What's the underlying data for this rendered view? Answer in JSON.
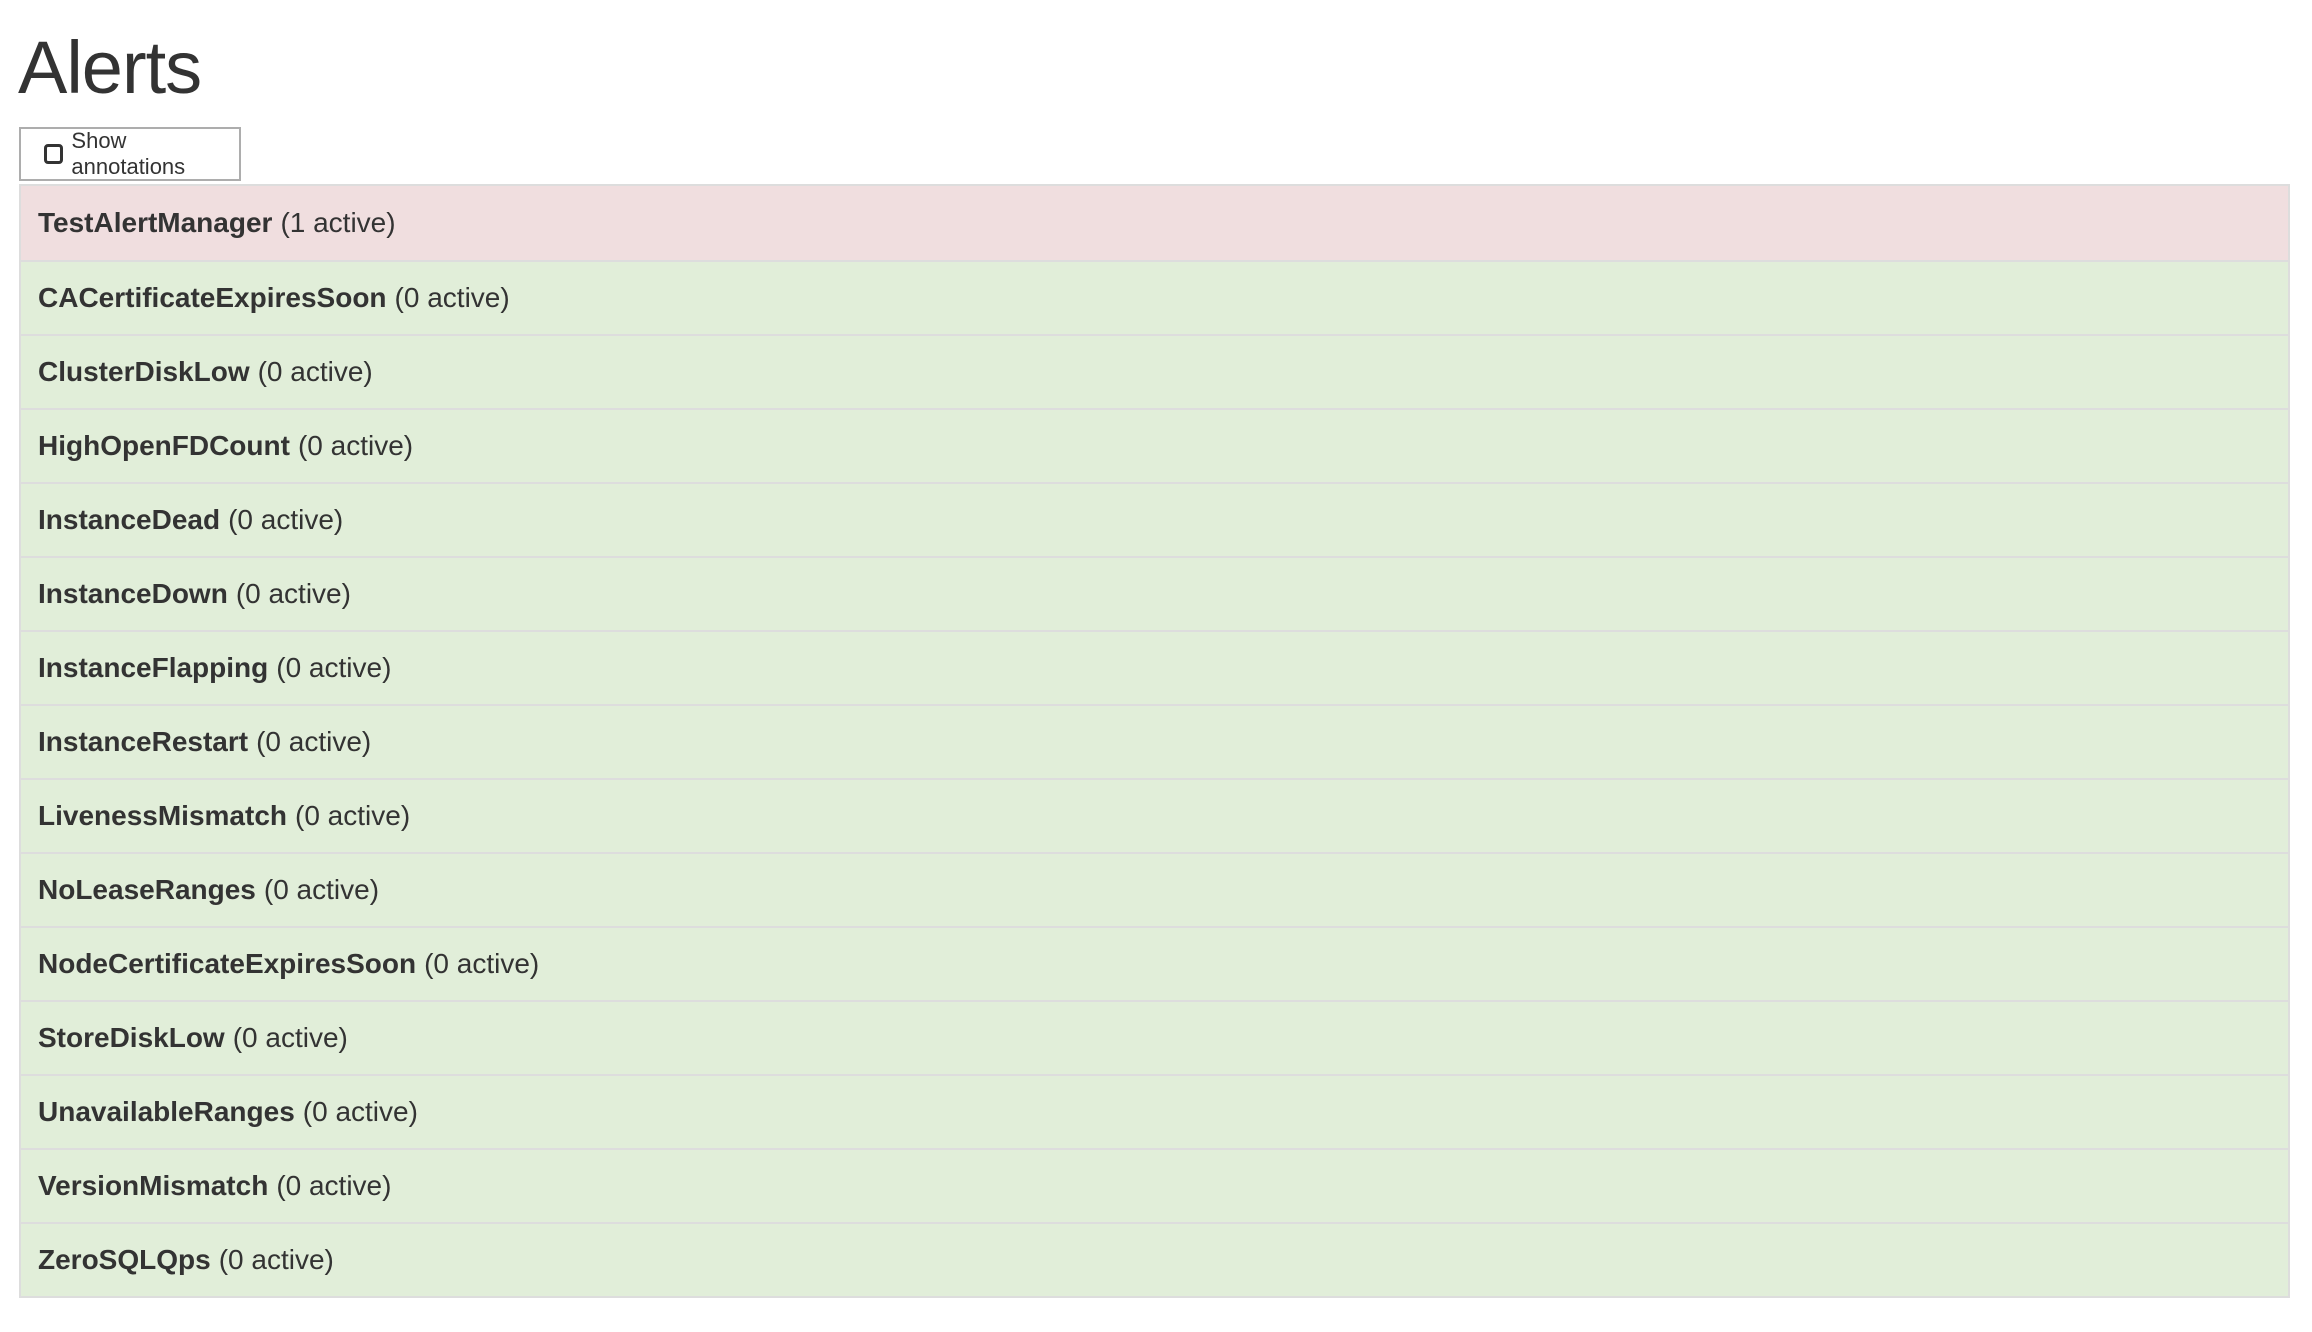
{
  "page": {
    "title": "Alerts"
  },
  "toolbar": {
    "show_annotations_label": "Show annotations",
    "show_annotations_checked": false
  },
  "colors": {
    "firing": "#f0dedf",
    "inactive": "#e1eed9",
    "border": "#dddddd",
    "text": "#333333"
  },
  "alerts": [
    {
      "name": "TestAlertManager",
      "count": "(1 active)",
      "state": "firing"
    },
    {
      "name": "CACertificateExpiresSoon",
      "count": "(0 active)",
      "state": "inactive"
    },
    {
      "name": "ClusterDiskLow",
      "count": "(0 active)",
      "state": "inactive"
    },
    {
      "name": "HighOpenFDCount",
      "count": "(0 active)",
      "state": "inactive"
    },
    {
      "name": "InstanceDead",
      "count": "(0 active)",
      "state": "inactive"
    },
    {
      "name": "InstanceDown",
      "count": "(0 active)",
      "state": "inactive"
    },
    {
      "name": "InstanceFlapping",
      "count": "(0 active)",
      "state": "inactive"
    },
    {
      "name": "InstanceRestart",
      "count": "(0 active)",
      "state": "inactive"
    },
    {
      "name": "LivenessMismatch",
      "count": "(0 active)",
      "state": "inactive"
    },
    {
      "name": "NoLeaseRanges",
      "count": "(0 active)",
      "state": "inactive"
    },
    {
      "name": "NodeCertificateExpiresSoon",
      "count": "(0 active)",
      "state": "inactive"
    },
    {
      "name": "StoreDiskLow",
      "count": "(0 active)",
      "state": "inactive"
    },
    {
      "name": "UnavailableRanges",
      "count": "(0 active)",
      "state": "inactive"
    },
    {
      "name": "VersionMismatch",
      "count": "(0 active)",
      "state": "inactive"
    },
    {
      "name": "ZeroSQLQps",
      "count": "(0 active)",
      "state": "inactive"
    }
  ]
}
